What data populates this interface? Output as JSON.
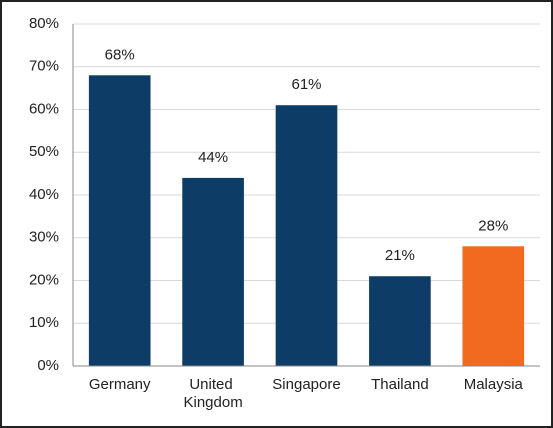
{
  "chart_data": {
    "type": "bar",
    "categories": [
      "Germany",
      "United Kingdom",
      "Singapore",
      "Thailand",
      "Malaysia"
    ],
    "values": [
      68,
      44,
      61,
      21,
      28
    ],
    "value_labels": [
      "68%",
      "44%",
      "61%",
      "21%",
      "28%"
    ],
    "colors": [
      "#0d3d66",
      "#0d3d66",
      "#0d3d66",
      "#0d3d66",
      "#f26a1f"
    ],
    "ylim": [
      0,
      80
    ],
    "yticks": [
      {
        "value": 0,
        "label": "0%"
      },
      {
        "value": 10,
        "label": "10%"
      },
      {
        "value": 20,
        "label": "20%"
      },
      {
        "value": 30,
        "label": "30%"
      },
      {
        "value": 40,
        "label": "40%"
      },
      {
        "value": 50,
        "label": "50%"
      },
      {
        "value": 60,
        "label": "60%"
      },
      {
        "value": 70,
        "label": "70%"
      },
      {
        "value": 80,
        "label": "80%"
      }
    ],
    "grid": true
  }
}
